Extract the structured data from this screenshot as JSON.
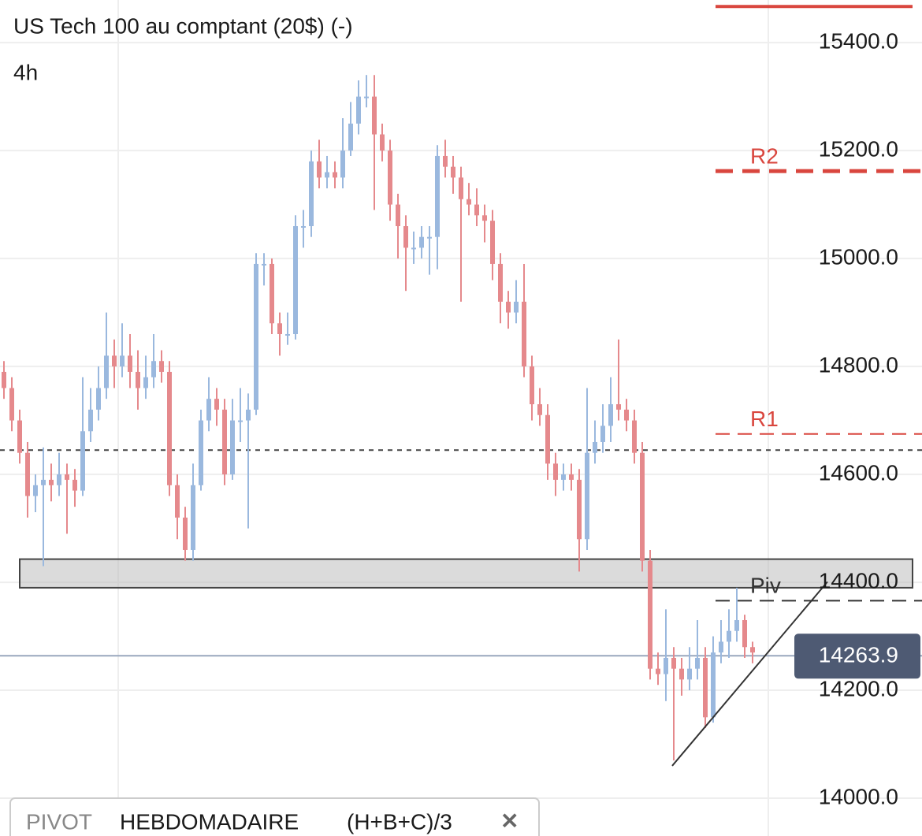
{
  "chart_data": {
    "type": "candlestick",
    "title": "US Tech 100 au comptant (20$) (-)",
    "timeframe": "4h",
    "up_color": "#9ab8de",
    "down_color": "#e5898c",
    "xlim": [
      -0.5,
      116.5
    ],
    "ylim": [
      13930,
      15479
    ],
    "yticks": [
      {
        "value": 14000,
        "label": "14000.0"
      },
      {
        "value": 14200,
        "label": "14200.0"
      },
      {
        "value": 14400,
        "label": "14400.0"
      },
      {
        "value": 14600,
        "label": "14600.0"
      },
      {
        "value": 14800,
        "label": "14800.0"
      },
      {
        "value": 15000,
        "label": "15000.0"
      },
      {
        "value": 15200,
        "label": "15200.0"
      },
      {
        "value": 15400,
        "label": "15400.0"
      }
    ],
    "grid": true,
    "open": [
      14790,
      14760,
      14700,
      14640,
      14560,
      14580,
      14590,
      14580,
      14600,
      14590,
      14570,
      14680,
      14720,
      14760,
      14820,
      14800,
      14820,
      14790,
      14760,
      14780,
      14810,
      14790,
      14580,
      14520,
      14460,
      14580,
      14700,
      14740,
      14720,
      14600,
      14700,
      14700,
      14720,
      14990,
      14990,
      14880,
      14860,
      14860,
      15060,
      15060,
      15180,
      15150,
      15160,
      15150,
      15200,
      15250,
      15300,
      15300,
      15230,
      15200,
      15100,
      15060,
      15020,
      15020,
      15040,
      15040,
      15190,
      15170,
      15150,
      15110,
      15100,
      15080,
      15070,
      14990,
      14920,
      14900,
      14920,
      14800,
      14730,
      14710,
      14620,
      14590,
      14600,
      14590,
      14480,
      14640,
      14660,
      14690,
      14730,
      14720,
      14700,
      14640,
      14440,
      14240,
      14230,
      14260,
      14240,
      14220,
      14240,
      14260,
      14150,
      14270,
      14290,
      14310,
      14330,
      14280
    ],
    "high": [
      14810,
      14780,
      14720,
      14660,
      14600,
      14650,
      14620,
      14640,
      14620,
      14610,
      14780,
      14760,
      14800,
      14900,
      14850,
      14880,
      14860,
      14830,
      14820,
      14860,
      14830,
      14810,
      14600,
      14540,
      14620,
      14720,
      14780,
      14760,
      14740,
      14740,
      14760,
      14750,
      15010,
      15010,
      15000,
      14900,
      14900,
      15080,
      15090,
      15200,
      15220,
      15190,
      15180,
      15260,
      15290,
      15330,
      15340,
      15340,
      15250,
      15220,
      15120,
      15080,
      15050,
      15060,
      15060,
      15210,
      15220,
      15190,
      15170,
      15140,
      15130,
      15100,
      15090,
      15010,
      14940,
      14960,
      14990,
      14820,
      14760,
      14730,
      14640,
      14620,
      14620,
      14610,
      14760,
      14700,
      14730,
      14780,
      14850,
      14740,
      14720,
      14660,
      14460,
      14270,
      14350,
      14280,
      14260,
      14280,
      14330,
      14280,
      14300,
      14330,
      14350,
      14390,
      14340,
      14290
    ],
    "low": [
      14740,
      14680,
      14620,
      14520,
      14530,
      14430,
      14550,
      14560,
      14490,
      14540,
      14560,
      14660,
      14700,
      14740,
      14760,
      14780,
      14760,
      14720,
      14740,
      14760,
      14770,
      14560,
      14480,
      14440,
      14440,
      14570,
      14680,
      14690,
      14580,
      14590,
      14660,
      14500,
      14710,
      14950,
      14860,
      14820,
      14840,
      14850,
      15020,
      15040,
      15130,
      15130,
      15130,
      15130,
      15190,
      15230,
      15280,
      15090,
      15180,
      15070,
      15000,
      14940,
      14990,
      15000,
      14970,
      14980,
      15150,
      15120,
      14920,
      15080,
      15060,
      15030,
      14960,
      14880,
      14870,
      14880,
      14780,
      14700,
      14690,
      14590,
      14560,
      14570,
      14570,
      14420,
      14460,
      14620,
      14640,
      14660,
      14700,
      14680,
      14620,
      14420,
      14220,
      14210,
      14180,
      14070,
      14190,
      14200,
      14220,
      14130,
      14140,
      14250,
      14260,
      14290,
      14260,
      14250
    ],
    "close": [
      14760,
      14700,
      14640,
      14560,
      14580,
      14590,
      14580,
      14600,
      14590,
      14570,
      14680,
      14720,
      14760,
      14820,
      14800,
      14820,
      14790,
      14760,
      14780,
      14810,
      14790,
      14580,
      14520,
      14460,
      14580,
      14700,
      14740,
      14720,
      14600,
      14700,
      14700,
      14720,
      14990,
      14990,
      14880,
      14860,
      14860,
      15060,
      15060,
      15180,
      15150,
      15160,
      15150,
      15200,
      15250,
      15300,
      15300,
      15230,
      15200,
      15100,
      15060,
      15020,
      15020,
      15040,
      15040,
      15190,
      15170,
      15150,
      15110,
      15100,
      15080,
      15070,
      14990,
      14920,
      14900,
      14920,
      14800,
      14730,
      14710,
      14620,
      14590,
      14600,
      14590,
      14480,
      14640,
      14660,
      14690,
      14730,
      14720,
      14700,
      14640,
      14440,
      14240,
      14230,
      14260,
      14240,
      14220,
      14240,
      14260,
      14150,
      14270,
      14290,
      14310,
      14330,
      14280,
      14270
    ],
    "levels": [
      {
        "value": 15467,
        "color": "#d9463e",
        "style": "solid"
      },
      {
        "name": "R2",
        "value": 15162,
        "color": "#d9463e",
        "style": "dashed-thick"
      },
      {
        "name": "R1",
        "value": 14675,
        "color": "#d9463e",
        "style": "dashed"
      },
      {
        "name": "Piv",
        "value": 14366,
        "color": "#333333",
        "style": "dashed"
      }
    ],
    "reference_line": {
      "value": 14645,
      "color": "#444444"
    },
    "zone": {
      "low": 14390,
      "high": 14443
    },
    "trendline": {
      "x": [
        84.8,
        104.5
      ],
      "y": [
        14060,
        14401
      ]
    },
    "last_price": 14263.9,
    "indicator": {
      "name": "PIVOT",
      "period": "HEBDOMADAIRE",
      "formula": "(H+B+C)/3",
      "close": "✕"
    }
  }
}
